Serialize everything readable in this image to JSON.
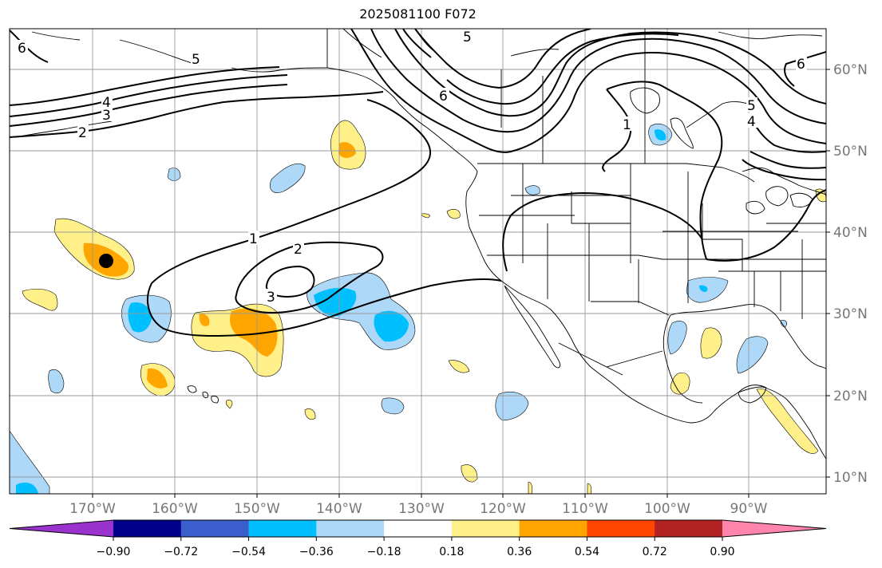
{
  "map": {
    "title": "2025081100 F072",
    "longitude_labels": [
      "170°W",
      "160°W",
      "150°W",
      "140°W",
      "130°W",
      "120°W",
      "110°W",
      "100°W",
      "90°W"
    ],
    "latitude_labels": [
      "60°N",
      "50°N",
      "40°N",
      "30°N",
      "20°N",
      "10°N"
    ],
    "colorbar": {
      "ticks": [
        "−0.90",
        "−0.72",
        "−0.54",
        "−0.36",
        "−0.18",
        "0.18",
        "0.36",
        "0.54",
        "0.72",
        "0.90"
      ],
      "colors": [
        "#9a32cd",
        "#00008b",
        "#3a5fcd",
        "#00bfff",
        "#add8f7",
        "#ffffff",
        "#fff08a",
        "#ffa500",
        "#ff4500",
        "#b22222",
        "#ff85ad"
      ]
    },
    "contour_labels": [
      "6",
      "5",
      "4",
      "3",
      "2",
      "1",
      "2",
      "3",
      "5",
      "6",
      "5",
      "4",
      "1",
      "6"
    ],
    "marker": "black-dot"
  }
}
